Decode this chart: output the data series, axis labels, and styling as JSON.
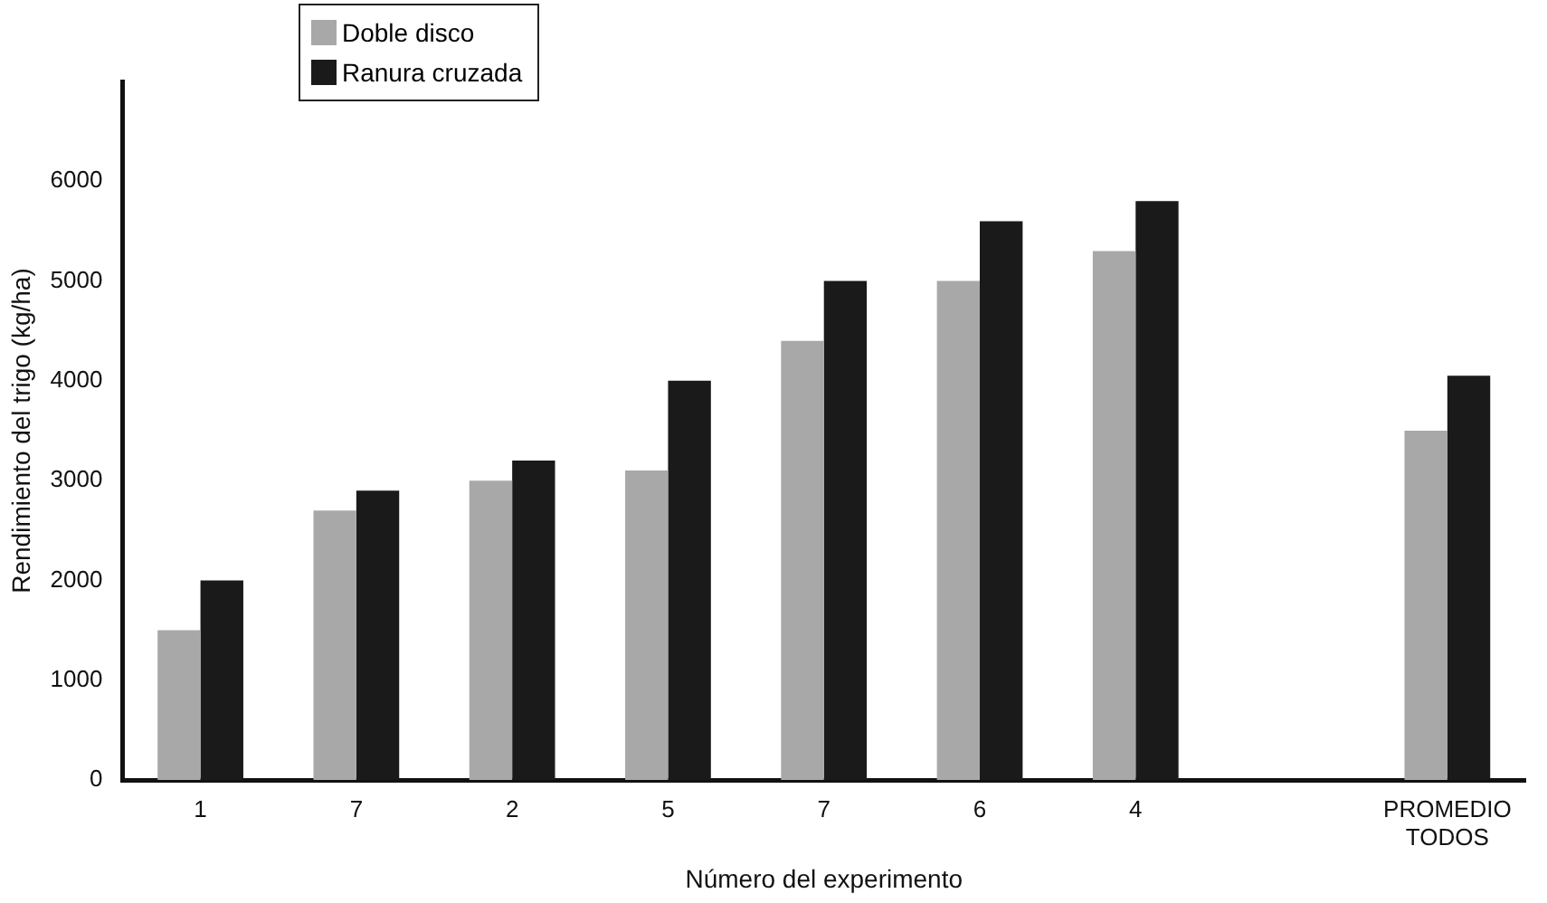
{
  "chart_data": {
    "type": "bar",
    "xlabel": "Número del experimento",
    "ylabel": "Rendimiento del trigo (kg/ha)",
    "categories": [
      "1",
      "7",
      "2",
      "5",
      "7",
      "6",
      "4",
      null,
      "PROMEDIO\nTODOS"
    ],
    "series": [
      {
        "name": "Doble disco",
        "color": "#a8a8a8",
        "values": [
          1500,
          2700,
          3000,
          3100,
          4400,
          5000,
          5300,
          null,
          3500
        ]
      },
      {
        "name": "Ranura cruzada",
        "color": "#1a1a1a",
        "values": [
          2000,
          2900,
          3200,
          4000,
          5000,
          5600,
          5800,
          null,
          4050
        ]
      }
    ],
    "ylim": [
      0,
      7000
    ],
    "yticks": [
      0,
      1000,
      2000,
      3000,
      4000,
      5000,
      6000
    ],
    "grid": false,
    "legend": "top left"
  }
}
